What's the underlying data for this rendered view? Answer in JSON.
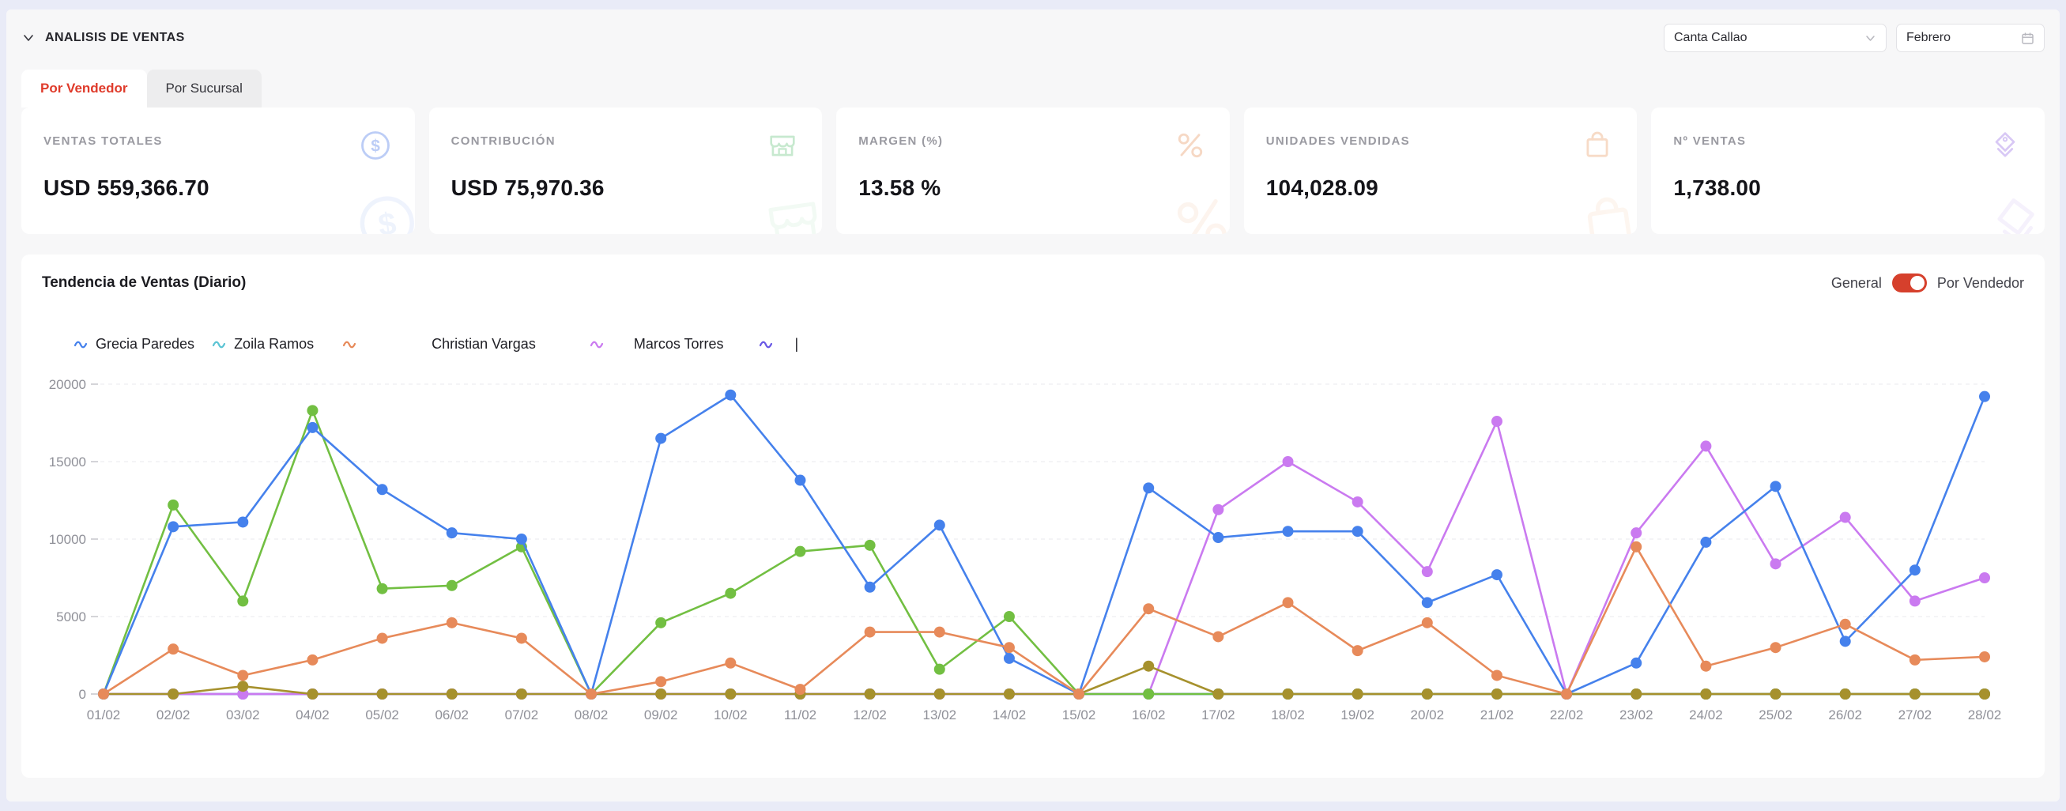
{
  "header": {
    "title": "ANALISIS DE VENTAS",
    "branch_select_value": "Canta Callao",
    "month_select_value": "Febrero"
  },
  "tabs": [
    {
      "label": "Por Vendedor",
      "active": true
    },
    {
      "label": "Por Sucursal",
      "active": false
    }
  ],
  "kpi_cards": [
    {
      "label": "VENTAS TOTALES",
      "value": "USD 559,366.70",
      "icon": "dollar-circle-icon",
      "icon_color": "#bccdf6"
    },
    {
      "label": "CONTRIBUCIÓN",
      "value": "USD 75,970.36",
      "icon": "store-icon",
      "icon_color": "#c7e9cf"
    },
    {
      "label": "MARGEN (%)",
      "value": "13.58 %",
      "icon": "percent-icon",
      "icon_color": "#f6d8c4"
    },
    {
      "label": "UNIDADES VENDIDAS",
      "value": "104,028.09",
      "icon": "shopping-bag-icon",
      "icon_color": "#f7dbc7"
    },
    {
      "label": "Nº VENTAS",
      "value": "1,738.00",
      "icon": "tag-icon",
      "icon_color": "#d8c8f5"
    }
  ],
  "chart_panel": {
    "title": "Tendencia de Ventas (Diario)",
    "toggle_left_label": "General",
    "toggle_right_label": "Por Vendedor",
    "toggle_state": "right",
    "toggle_color": "#d6402c"
  },
  "chart_data": {
    "type": "line",
    "title": "Tendencia de Ventas (Diario)",
    "xlabel": "",
    "ylabel": "",
    "ylim": [
      0,
      20000
    ],
    "yticks": [
      0,
      5000,
      10000,
      15000,
      20000
    ],
    "grid": "dashed-horizontal",
    "legend_position": "top-left",
    "x": [
      "01/02",
      "02/02",
      "03/02",
      "04/02",
      "05/02",
      "06/02",
      "07/02",
      "08/02",
      "09/02",
      "10/02",
      "11/02",
      "12/02",
      "13/02",
      "14/02",
      "15/02",
      "16/02",
      "17/02",
      "18/02",
      "19/02",
      "20/02",
      "21/02",
      "22/02",
      "23/02",
      "24/02",
      "25/02",
      "26/02",
      "27/02",
      "28/02"
    ],
    "legend": [
      {
        "label": "Grecia Paredes",
        "color": "#4581ec"
      },
      {
        "label": "Zoila Ramos",
        "color": "#5bc4d4"
      },
      {
        "label": "Christian Vargas",
        "color": "#e78a5a"
      },
      {
        "label": "Marcos Torres",
        "color": "#ca7af0"
      },
      {
        "label": "|",
        "color": "#6857e5"
      }
    ],
    "series": [
      {
        "name": "Zoila Ramos",
        "color": "#5bc4d4",
        "values": [
          0,
          0,
          0,
          0,
          0,
          0,
          0,
          0,
          0,
          0,
          0,
          0,
          0,
          0,
          0,
          0,
          0,
          0,
          0,
          0,
          0,
          0,
          0,
          0,
          0,
          0,
          0,
          0
        ]
      },
      {
        "name": "",
        "color": "#6857e5",
        "values": [
          0,
          0,
          0,
          0,
          0,
          0,
          0,
          0,
          0,
          0,
          0,
          0,
          0,
          0,
          0,
          0,
          0,
          0,
          0,
          0,
          0,
          0,
          0,
          0,
          0,
          0,
          0,
          0
        ]
      },
      {
        "name": "Marcos Torres",
        "color": "#ca7af0",
        "values": [
          0,
          0,
          0,
          0,
          0,
          0,
          0,
          0,
          0,
          0,
          0,
          0,
          0,
          0,
          0,
          0,
          11900,
          15000,
          12400,
          7900,
          17600,
          0,
          10400,
          16000,
          8400,
          11400,
          6000,
          7500
        ]
      },
      {
        "name": "",
        "color": "#72bf42",
        "values": [
          0,
          12200,
          6000,
          18300,
          6800,
          7000,
          9500,
          0,
          4600,
          6500,
          9200,
          9600,
          1600,
          5000,
          0,
          0,
          0,
          0,
          0,
          0,
          0,
          0,
          0,
          0,
          0,
          0,
          0,
          0
        ]
      },
      {
        "name": "",
        "color": "#a6912d",
        "values": [
          0,
          0,
          500,
          0,
          0,
          0,
          0,
          0,
          0,
          0,
          0,
          0,
          0,
          0,
          0,
          1800,
          0,
          0,
          0,
          0,
          0,
          0,
          0,
          0,
          0,
          0,
          0,
          0
        ]
      },
      {
        "name": "Grecia Paredes",
        "color": "#4581ec",
        "values": [
          0,
          10800,
          11100,
          17200,
          13200,
          10400,
          10000,
          0,
          16500,
          19300,
          13800,
          6900,
          10900,
          2300,
          0,
          13300,
          10100,
          10500,
          10500,
          5900,
          7700,
          0,
          2000,
          9800,
          13400,
          3400,
          8000,
          19200
        ]
      },
      {
        "name": "Christian Vargas",
        "color": "#e78a5a",
        "values": [
          0,
          2900,
          1200,
          2200,
          3600,
          4600,
          3600,
          0,
          800,
          2000,
          300,
          4000,
          4000,
          3000,
          0,
          5500,
          3700,
          5900,
          2800,
          4600,
          1200,
          0,
          9500,
          1800,
          3000,
          4500,
          2200,
          2400
        ]
      }
    ]
  }
}
